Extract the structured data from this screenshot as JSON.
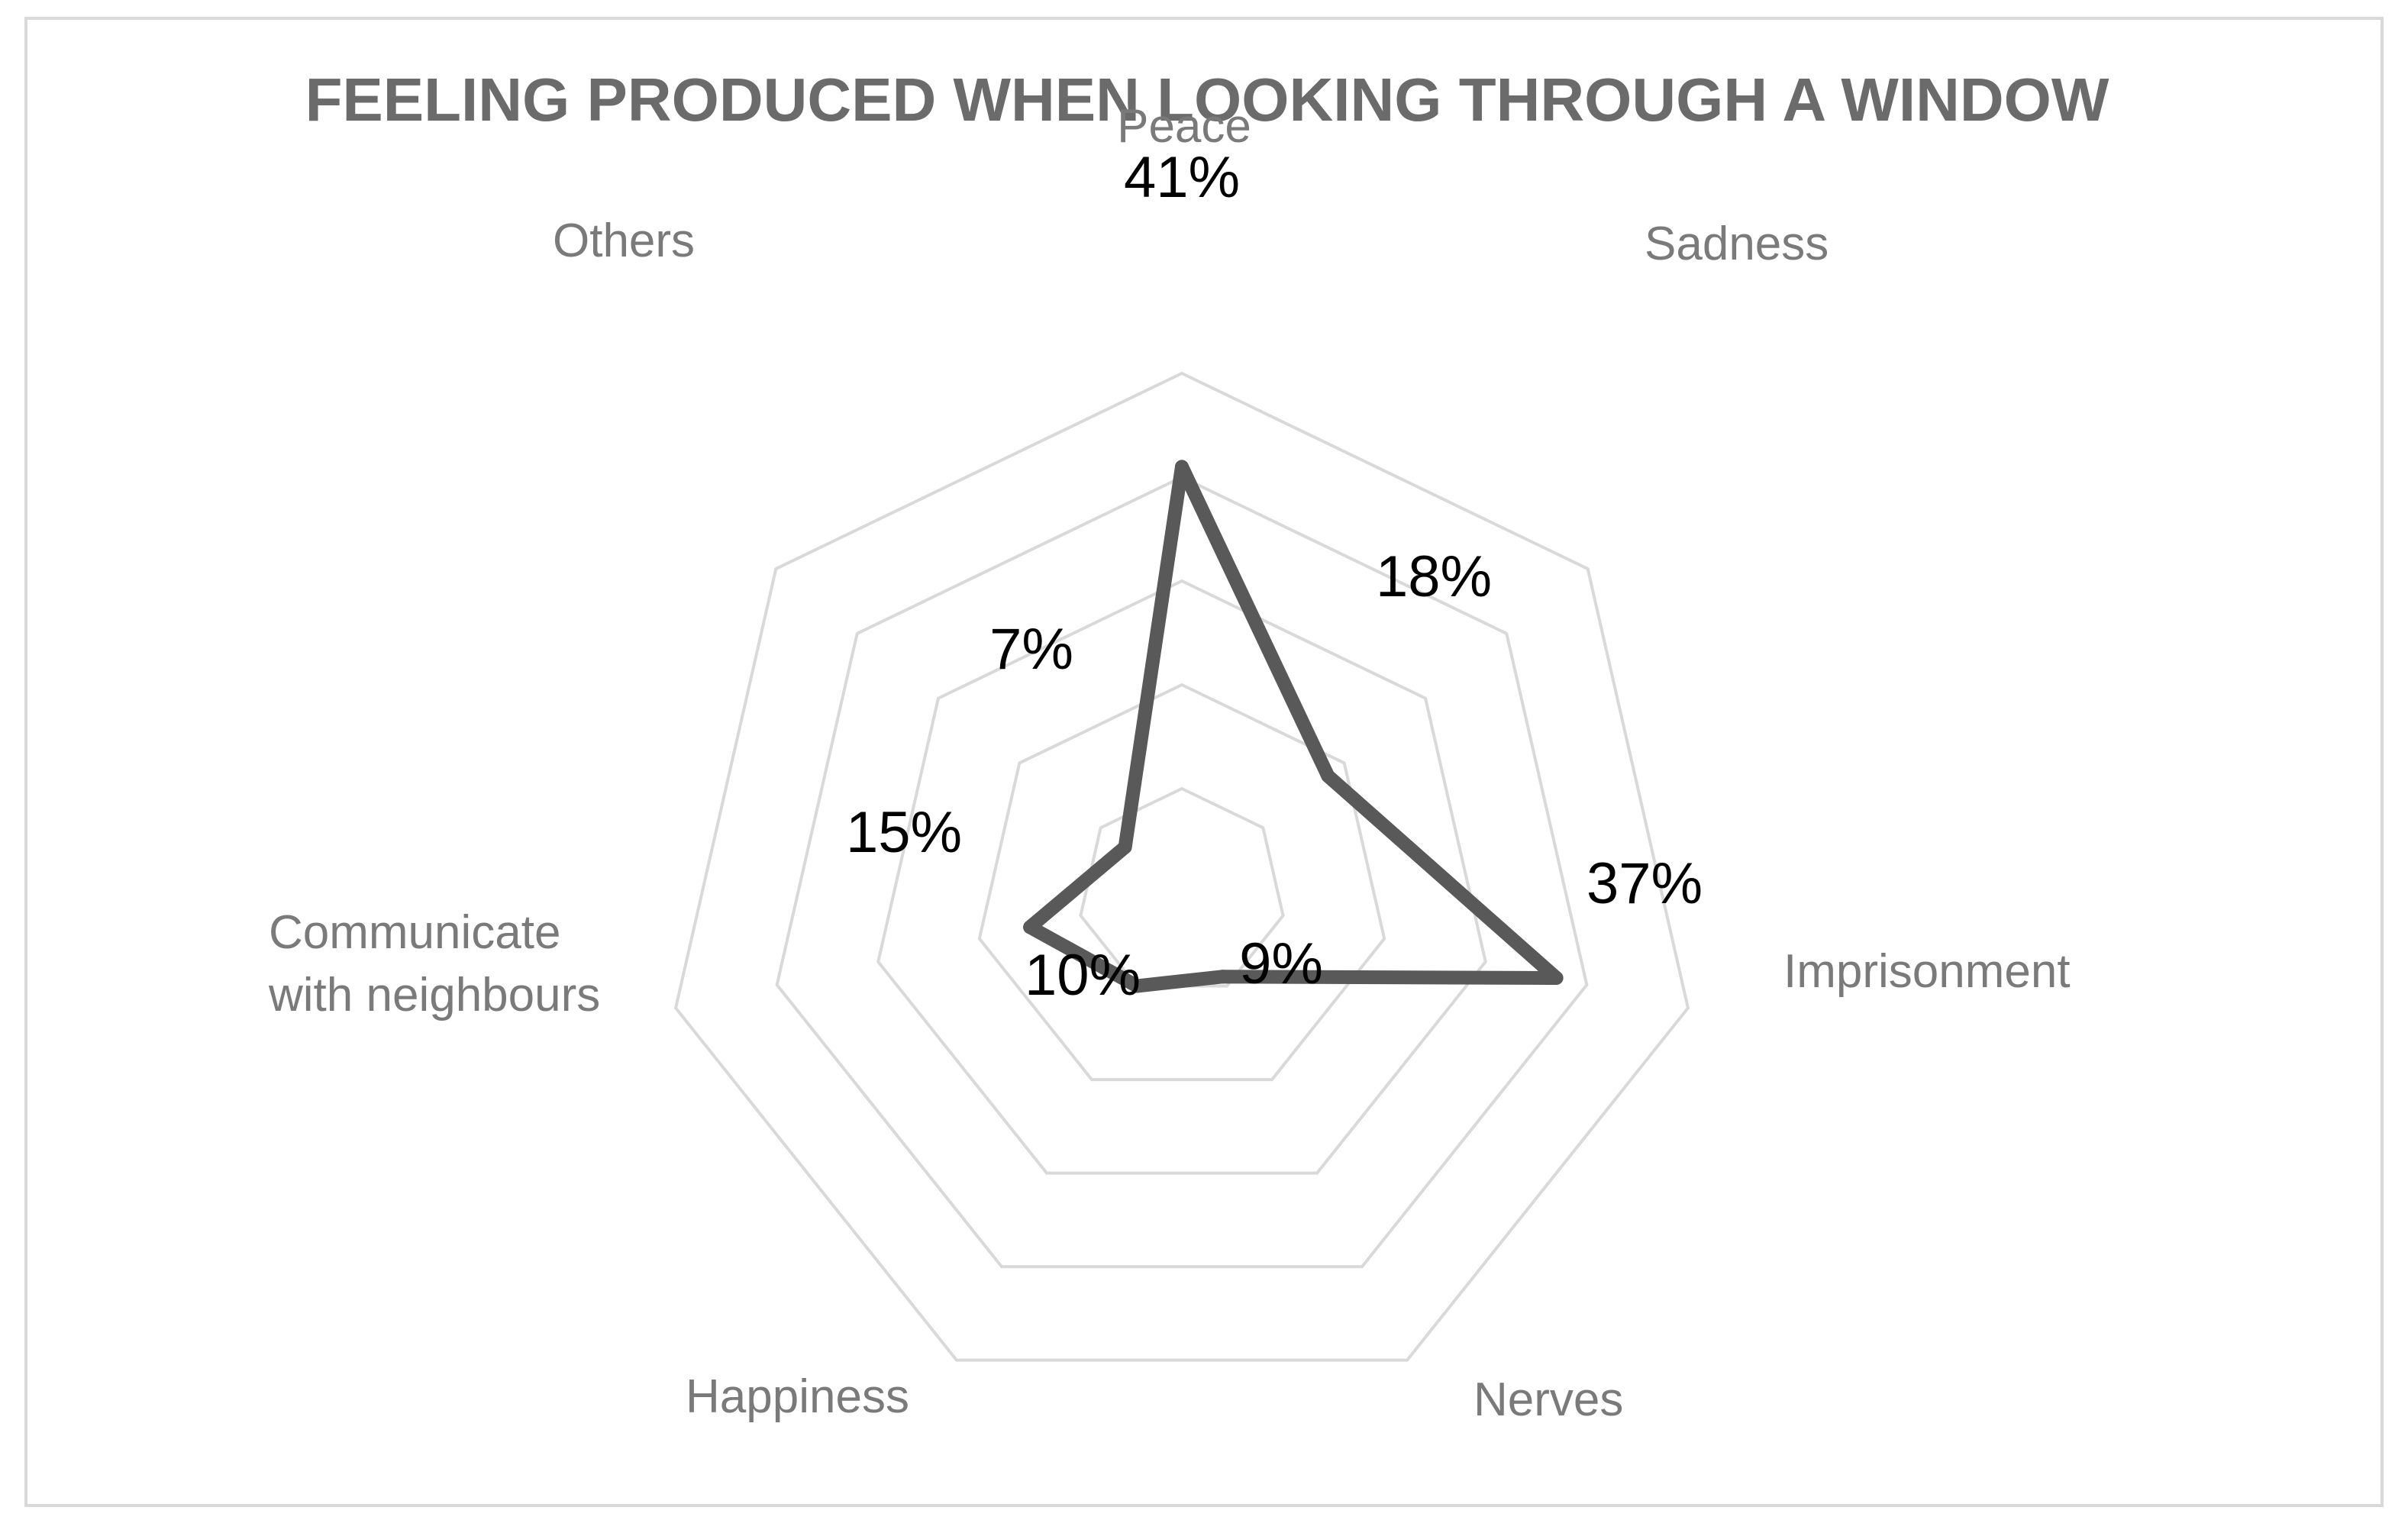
{
  "chart_data": {
    "type": "radar",
    "title": "FEELING PRODUCED WHEN LOOKING THROUGH A WINDOW",
    "categories": [
      "Peace",
      "Sadness",
      "Imprisonment",
      "Nerves",
      "Happiness",
      "Communicate with neighbours",
      "Others"
    ],
    "series": [
      {
        "values": [
          41,
          18,
          37,
          9,
          10,
          15,
          7
        ],
        "data_labels": [
          "41%",
          "18%",
          "37%",
          "9%",
          "10%",
          "15%",
          "7%"
        ]
      }
    ],
    "rlim": [
      0,
      50
    ],
    "ring_count": 5,
    "grid": true,
    "legend": "none"
  },
  "colors": {
    "series_line": "#595959",
    "grid": "#d9d9d9",
    "title": "#6b6b6b",
    "axis_label": "#7a7a7a",
    "value_label": "#000000",
    "border": "#d9d9d9"
  }
}
